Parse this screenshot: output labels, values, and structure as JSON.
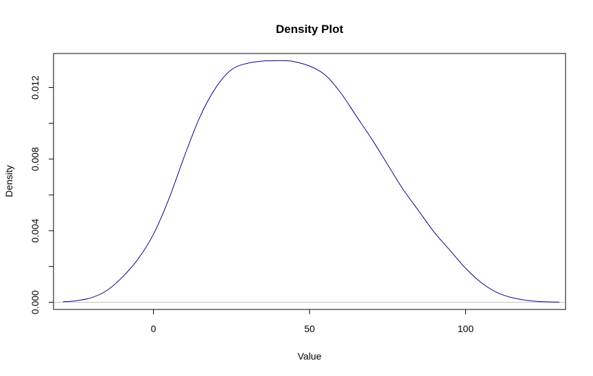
{
  "chart_data": {
    "type": "line",
    "title": "Density Plot",
    "xlabel": "Value",
    "ylabel": "Density",
    "xlim": [
      -32,
      132
    ],
    "ylim": [
      -0.0004,
      0.0139
    ],
    "x_ticks": [
      0,
      50,
      100
    ],
    "x_tick_labels": [
      "0",
      "50",
      "100"
    ],
    "y_ticks": [
      0.0,
      0.002,
      0.004,
      0.006,
      0.008,
      0.01,
      0.012
    ],
    "y_tick_labels": [
      "0.000",
      "",
      "0.004",
      "",
      "0.008",
      "",
      "0.012"
    ],
    "reference_line_y": 0,
    "grid": false,
    "colors": {
      "line": "#00008b",
      "reference": "#bebebe",
      "frame": "#000000"
    },
    "series": [
      {
        "x": [
          -29,
          -25,
          -20,
          -15,
          -10,
          -5,
          0,
          5,
          10,
          15,
          20,
          25,
          30,
          35,
          40,
          42,
          45,
          50,
          55,
          60,
          65,
          70,
          75,
          80,
          85,
          90,
          95,
          100,
          105,
          110,
          115,
          120,
          125,
          130
        ],
        "y": [
          3e-05,
          8e-05,
          0.00025,
          0.00065,
          0.0014,
          0.0024,
          0.0038,
          0.0058,
          0.0082,
          0.0104,
          0.012,
          0.013,
          0.01335,
          0.01348,
          0.0135,
          0.0135,
          0.01345,
          0.0132,
          0.0127,
          0.0117,
          0.0104,
          0.0091,
          0.0077,
          0.0063,
          0.0051,
          0.0039,
          0.0029,
          0.0019,
          0.0011,
          0.00055,
          0.00025,
          0.0001,
          3e-05,
          1e-05
        ]
      }
    ]
  }
}
